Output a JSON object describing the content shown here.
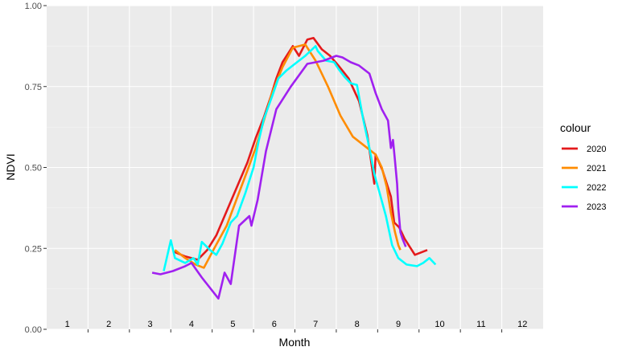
{
  "chart_data": {
    "type": "line",
    "xlabel": "Month",
    "ylabel": "NDVI",
    "ylim": [
      0,
      1
    ],
    "yticks": [
      "0.00",
      "0.25",
      "0.50",
      "0.75",
      "1.00"
    ],
    "month_labels": [
      "1",
      "2",
      "3",
      "4",
      "5",
      "6",
      "7",
      "8",
      "9",
      "10",
      "11",
      "12"
    ],
    "legend_title": "colour",
    "grid": true,
    "legend_position": "right",
    "series": [
      {
        "name": "2020",
        "color": "#E41A1C",
        "points": [
          [
            3.57,
            0.24
          ],
          [
            3.85,
            0.225
          ],
          [
            4.15,
            0.215
          ],
          [
            4.38,
            0.245
          ],
          [
            4.6,
            0.29
          ],
          [
            4.85,
            0.365
          ],
          [
            5.1,
            0.44
          ],
          [
            5.35,
            0.515
          ],
          [
            5.55,
            0.59
          ],
          [
            5.75,
            0.655
          ],
          [
            5.92,
            0.72
          ],
          [
            6.05,
            0.775
          ],
          [
            6.2,
            0.825
          ],
          [
            6.45,
            0.875
          ],
          [
            6.6,
            0.845
          ],
          [
            6.8,
            0.895
          ],
          [
            6.95,
            0.9
          ],
          [
            7.15,
            0.865
          ],
          [
            7.35,
            0.845
          ],
          [
            7.55,
            0.815
          ],
          [
            7.8,
            0.775
          ],
          [
            8.05,
            0.705
          ],
          [
            8.25,
            0.6
          ],
          [
            8.42,
            0.45
          ],
          [
            8.45,
            0.54
          ],
          [
            8.62,
            0.49
          ],
          [
            8.82,
            0.41
          ],
          [
            8.9,
            0.33
          ],
          [
            9.02,
            0.315
          ],
          [
            9.15,
            0.28
          ],
          [
            9.4,
            0.23
          ],
          [
            9.7,
            0.245
          ]
        ]
      },
      {
        "name": "2021",
        "color": "#FF8C00",
        "points": [
          [
            3.6,
            0.245
          ],
          [
            3.85,
            0.22
          ],
          [
            4.1,
            0.2
          ],
          [
            4.3,
            0.19
          ],
          [
            4.55,
            0.25
          ],
          [
            4.85,
            0.32
          ],
          [
            5.1,
            0.405
          ],
          [
            5.35,
            0.49
          ],
          [
            5.55,
            0.56
          ],
          [
            5.75,
            0.645
          ],
          [
            5.95,
            0.73
          ],
          [
            6.2,
            0.81
          ],
          [
            6.45,
            0.87
          ],
          [
            6.75,
            0.88
          ],
          [
            7.0,
            0.83
          ],
          [
            7.3,
            0.75
          ],
          [
            7.6,
            0.66
          ],
          [
            7.9,
            0.595
          ],
          [
            8.25,
            0.56
          ],
          [
            8.45,
            0.54
          ],
          [
            8.6,
            0.5
          ],
          [
            8.72,
            0.44
          ],
          [
            8.82,
            0.36
          ],
          [
            8.92,
            0.3
          ],
          [
            9.0,
            0.26
          ],
          [
            9.05,
            0.245
          ]
        ]
      },
      {
        "name": "2022",
        "color": "#00FFFF",
        "points": [
          [
            3.33,
            0.18
          ],
          [
            3.5,
            0.275
          ],
          [
            3.6,
            0.22
          ],
          [
            3.85,
            0.205
          ],
          [
            4.05,
            0.22
          ],
          [
            4.15,
            0.2
          ],
          [
            4.25,
            0.27
          ],
          [
            4.45,
            0.245
          ],
          [
            4.6,
            0.23
          ],
          [
            4.75,
            0.265
          ],
          [
            4.95,
            0.33
          ],
          [
            5.1,
            0.35
          ],
          [
            5.3,
            0.42
          ],
          [
            5.5,
            0.5
          ],
          [
            5.62,
            0.58
          ],
          [
            5.75,
            0.65
          ],
          [
            5.95,
            0.72
          ],
          [
            6.1,
            0.775
          ],
          [
            6.3,
            0.8
          ],
          [
            6.5,
            0.82
          ],
          [
            6.75,
            0.845
          ],
          [
            7.0,
            0.875
          ],
          [
            7.05,
            0.86
          ],
          [
            7.25,
            0.83
          ],
          [
            7.45,
            0.825
          ],
          [
            7.55,
            0.805
          ],
          [
            7.7,
            0.78
          ],
          [
            7.85,
            0.76
          ],
          [
            8.0,
            0.755
          ],
          [
            8.15,
            0.65
          ],
          [
            8.3,
            0.56
          ],
          [
            8.42,
            0.48
          ],
          [
            8.55,
            0.42
          ],
          [
            8.7,
            0.35
          ],
          [
            8.85,
            0.26
          ],
          [
            9.0,
            0.22
          ],
          [
            9.2,
            0.2
          ],
          [
            9.45,
            0.195
          ],
          [
            9.6,
            0.205
          ],
          [
            9.75,
            0.22
          ],
          [
            9.9,
            0.2
          ]
        ]
      },
      {
        "name": "2023",
        "color": "#A020F0",
        "points": [
          [
            3.05,
            0.175
          ],
          [
            3.25,
            0.17
          ],
          [
            3.55,
            0.18
          ],
          [
            3.85,
            0.195
          ],
          [
            4.0,
            0.205
          ],
          [
            4.25,
            0.16
          ],
          [
            4.65,
            0.095
          ],
          [
            4.8,
            0.175
          ],
          [
            4.95,
            0.14
          ],
          [
            5.15,
            0.32
          ],
          [
            5.4,
            0.35
          ],
          [
            5.45,
            0.32
          ],
          [
            5.6,
            0.4
          ],
          [
            5.8,
            0.55
          ],
          [
            6.05,
            0.68
          ],
          [
            6.4,
            0.75
          ],
          [
            6.8,
            0.82
          ],
          [
            7.2,
            0.83
          ],
          [
            7.5,
            0.845
          ],
          [
            7.65,
            0.84
          ],
          [
            7.85,
            0.825
          ],
          [
            8.05,
            0.815
          ],
          [
            8.3,
            0.79
          ],
          [
            8.45,
            0.73
          ],
          [
            8.6,
            0.68
          ],
          [
            8.75,
            0.645
          ],
          [
            8.82,
            0.56
          ],
          [
            8.87,
            0.585
          ],
          [
            8.92,
            0.52
          ],
          [
            8.97,
            0.45
          ],
          [
            9.0,
            0.375
          ],
          [
            9.05,
            0.3
          ],
          [
            9.1,
            0.28
          ],
          [
            9.18,
            0.255
          ]
        ]
      }
    ]
  }
}
